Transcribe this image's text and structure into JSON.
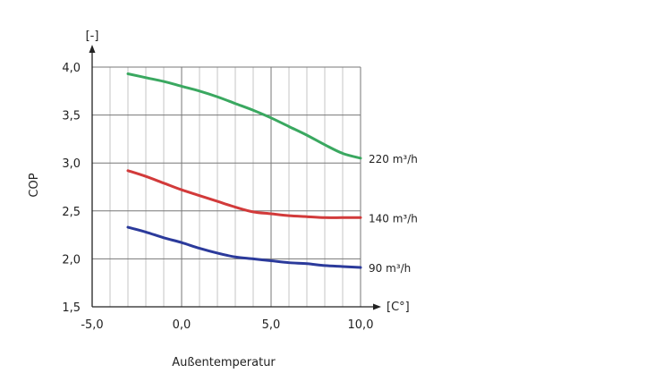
{
  "chart_data": {
    "type": "line",
    "xlabel": "Außentemperatur",
    "ylabel": "COP",
    "x_unit": "[C°]",
    "y_unit": "[-]",
    "xlim": [
      -5.0,
      10.0
    ],
    "ylim": [
      1.5,
      4.0
    ],
    "x_ticks": [
      "-5,0",
      "0,0",
      "5,0",
      "10,0"
    ],
    "y_ticks": [
      "1,5",
      "2,0",
      "2,5",
      "3,0",
      "3,5",
      "4,0"
    ],
    "grid": true,
    "series": [
      {
        "name": "220 m³/h",
        "color": "#3aa860",
        "x": [
          -3,
          -2,
          -1,
          0,
          1,
          2,
          3,
          4,
          5,
          6,
          7,
          8,
          9,
          10
        ],
        "y": [
          3.93,
          3.89,
          3.85,
          3.8,
          3.75,
          3.69,
          3.62,
          3.55,
          3.47,
          3.38,
          3.29,
          3.19,
          3.1,
          3.05
        ]
      },
      {
        "name": "140 m³/h",
        "color": "#d23a3a",
        "x": [
          -3,
          -2,
          -1,
          0,
          1,
          2,
          3,
          4,
          5,
          6,
          7,
          8,
          9,
          10
        ],
        "y": [
          2.92,
          2.86,
          2.79,
          2.72,
          2.66,
          2.6,
          2.54,
          2.49,
          2.47,
          2.45,
          2.44,
          2.43,
          2.43,
          2.43
        ]
      },
      {
        "name": "90 m³/h",
        "color": "#2b3a9b",
        "x": [
          -3,
          -2,
          -1,
          0,
          1,
          2,
          3,
          4,
          5,
          6,
          7,
          8,
          9,
          10
        ],
        "y": [
          2.33,
          2.28,
          2.22,
          2.17,
          2.11,
          2.06,
          2.02,
          2.0,
          1.98,
          1.96,
          1.95,
          1.93,
          1.92,
          1.91
        ]
      }
    ]
  }
}
